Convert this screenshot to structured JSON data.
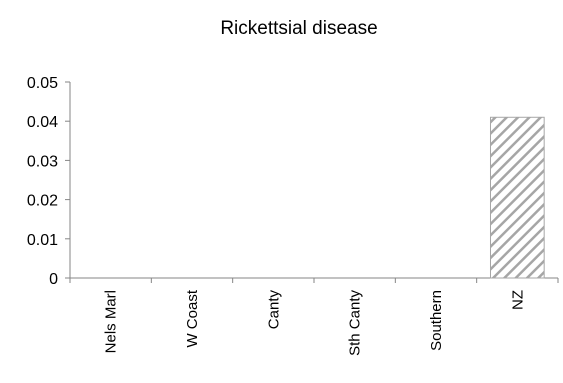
{
  "chart_data": {
    "type": "bar",
    "title": "Rickettsial disease",
    "categories": [
      "Nels Marl",
      "W Coast",
      "Canty",
      "Sth Canty",
      "Southern",
      "NZ"
    ],
    "values": [
      0,
      0,
      0,
      0,
      0,
      0.041
    ],
    "ylim": [
      0,
      0.05
    ],
    "yticks": [
      "0",
      "0.01",
      "0.02",
      "0.03",
      "0.04",
      "0.05"
    ],
    "grid": false,
    "legend": "none",
    "bar_fill": "hatched-diagonal",
    "colors": {
      "bar_stripe": "#a6a6a6",
      "bar_edge": "#a6a6a6",
      "axis": "#868686",
      "text": "#000000"
    }
  }
}
